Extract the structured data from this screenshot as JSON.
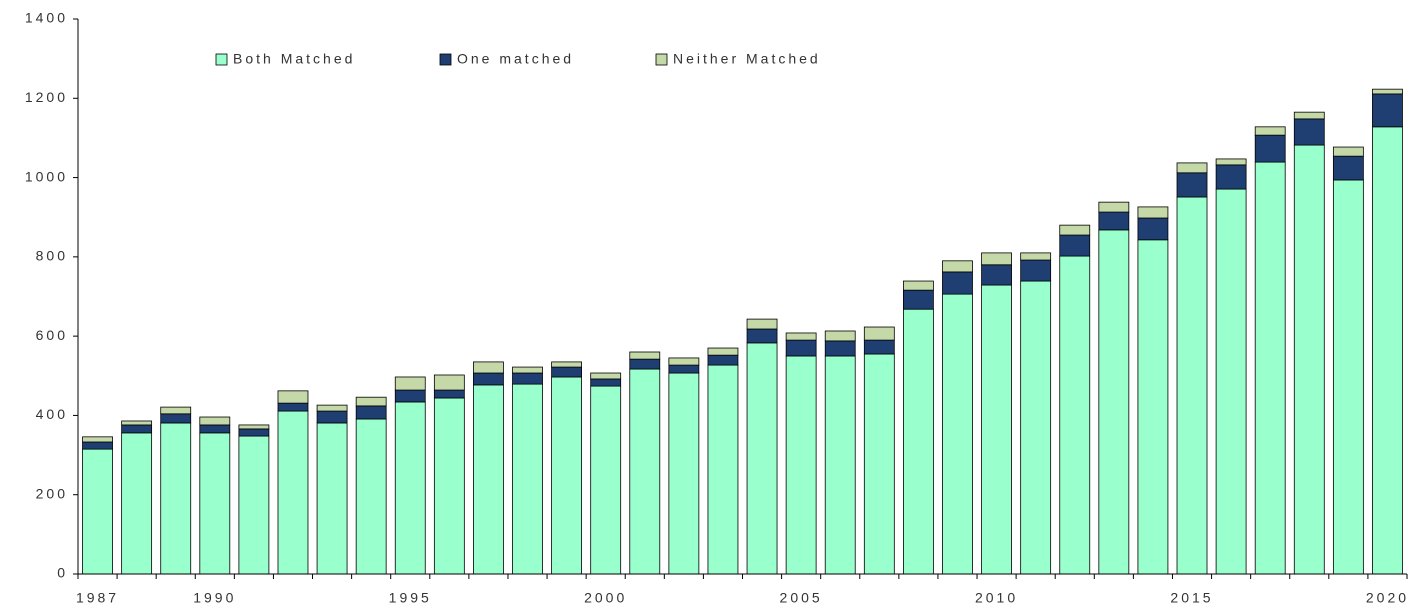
{
  "chart_data": {
    "type": "stacked-bar",
    "categories": [
      "1987",
      null,
      null,
      "1990",
      null,
      null,
      null,
      null,
      "1995",
      null,
      null,
      null,
      null,
      "2000",
      null,
      null,
      null,
      null,
      "2005",
      null,
      null,
      null,
      null,
      "2010",
      null,
      null,
      null,
      null,
      "2015",
      null,
      null,
      null,
      null,
      "2020"
    ],
    "series": [
      {
        "name": "Both Matched",
        "color": "#99ffcc",
        "values": [
          315,
          356,
          381,
          356,
          348,
          411,
          381,
          391,
          434,
          444,
          477,
          479,
          497,
          474,
          517,
          507,
          527,
          583,
          550,
          550,
          555,
          668,
          706,
          729,
          739,
          802,
          868,
          843,
          951,
          971,
          1039,
          1082,
          994,
          1128
        ]
      },
      {
        "name": "One matched",
        "color": "#1f3f73",
        "values": [
          18,
          20,
          23,
          20,
          18,
          20,
          30,
          33,
          30,
          20,
          30,
          28,
          25,
          18,
          25,
          20,
          25,
          35,
          40,
          38,
          35,
          48,
          56,
          51,
          53,
          53,
          45,
          55,
          61,
          61,
          68,
          66,
          60,
          83
        ]
      },
      {
        "name": "Neither Matched",
        "color": "#c4d8a8",
        "values": [
          13,
          10,
          17,
          20,
          10,
          31,
          15,
          22,
          33,
          38,
          28,
          15,
          13,
          15,
          18,
          18,
          18,
          25,
          18,
          25,
          33,
          23,
          28,
          30,
          18,
          25,
          25,
          28,
          25,
          15,
          21,
          17,
          23,
          12
        ]
      }
    ],
    "ylim": [
      0,
      1400
    ],
    "yticks": [
      0,
      200,
      400,
      600,
      800,
      1000,
      1200,
      1400
    ]
  }
}
